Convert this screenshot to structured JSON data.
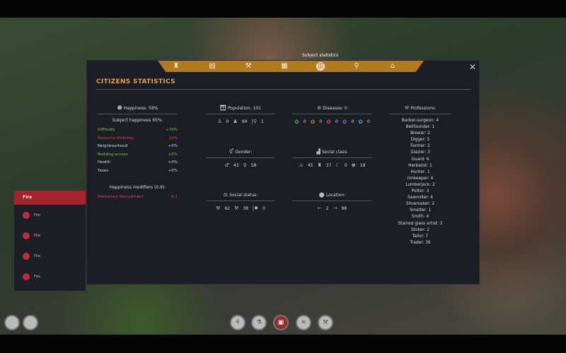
{
  "tooltip": "Subject statistics",
  "tabs": [
    {
      "icon": "money-bag-icon",
      "g": "♜"
    },
    {
      "icon": "scroll-icon",
      "g": "▤"
    },
    {
      "icon": "anvil-icon",
      "g": "⚒"
    },
    {
      "icon": "building-icon",
      "g": "▦"
    },
    {
      "icon": "bar-chart-icon",
      "g": "▥",
      "active": true
    },
    {
      "icon": "map-pin-icon",
      "g": "⚲"
    },
    {
      "icon": "castle-icon",
      "g": "⌂"
    }
  ],
  "close": "✕",
  "title": "CITIZENS STATISTICS",
  "happiness": {
    "header": "Happiness: 58%",
    "subject": "Subject happiness 65%:",
    "factors": [
      {
        "label": "Difficulty",
        "value": "+70%",
        "color": "g"
      },
      {
        "label": "Resource diversity",
        "value": "10%",
        "color": "r"
      },
      {
        "label": "Neighbourhood",
        "value": "+0%",
        "color": "w"
      },
      {
        "label": "Building access",
        "value": "+5%",
        "color": "g"
      },
      {
        "label": "Health",
        "value": "+0%",
        "color": "w"
      },
      {
        "label": "Taxes",
        "value": "+0%",
        "color": "w"
      }
    ],
    "modifiers_header": "Happiness modifiers (0.9):",
    "modifiers": [
      {
        "label": "Mercenary Recruitment",
        "value": "-0.1",
        "color": "r"
      }
    ]
  },
  "population": {
    "header": "Population: 101",
    "children": "0",
    "adults": "99",
    "elderly": "1"
  },
  "gender": {
    "header": "Gender:",
    "male": "43",
    "female": "58"
  },
  "social_status": {
    "header": "Social status:",
    "a": "62",
    "b": "38",
    "c": "0"
  },
  "diseases": {
    "header": "Diseases: 0",
    "values": [
      {
        "v": "0",
        "color": "#5aa84a"
      },
      {
        "v": "0",
        "color": "#e07a30"
      },
      {
        "v": "0",
        "color": "#d84a60"
      },
      {
        "v": "0",
        "color": "#9a5ad0"
      },
      {
        "v": "0",
        "color": "#5aa0c0"
      }
    ]
  },
  "social_class": {
    "header": "Social class:",
    "values": [
      "45",
      "37",
      "0",
      "18"
    ]
  },
  "location": {
    "header": "Location:",
    "a": "2",
    "b": "98"
  },
  "professions": {
    "header": "Professions:",
    "items": [
      "Barber-surgeon: 4",
      "Bellfounder: 1",
      "Brewer: 2",
      "Digger: 5",
      "Farmer: 2",
      "Glazier: 3",
      "Guard: 6",
      "Herbalist: 1",
      "Hunter: 1",
      "Innkeeper: 4",
      "Lumberjack: 2",
      "Potter: 3",
      "Sawmiller: 4",
      "Shoemaker: 2",
      "Smelter: 1",
      "Smith: 4",
      "Stained glass artist: 2",
      "Stoker: 2",
      "Tailor: 7",
      "Trader: 36"
    ]
  },
  "sidebar": {
    "header": "Fire",
    "items": [
      "Fire",
      "Fire",
      "Fire",
      "Fire"
    ]
  }
}
